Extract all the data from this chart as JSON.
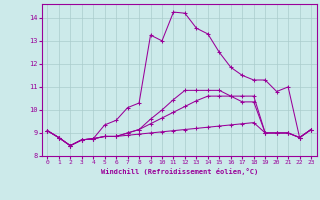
{
  "xlabel": "Windchill (Refroidissement éolien,°C)",
  "bg_color": "#cceaea",
  "grid_color": "#aacccc",
  "line_color": "#990099",
  "xlim": [
    -0.5,
    23.5
  ],
  "ylim": [
    8.0,
    14.6
  ],
  "xticks": [
    0,
    1,
    2,
    3,
    4,
    5,
    6,
    7,
    8,
    9,
    10,
    11,
    12,
    13,
    14,
    15,
    16,
    17,
    18,
    19,
    20,
    21,
    22,
    23
  ],
  "yticks": [
    8,
    9,
    10,
    11,
    12,
    13,
    14
  ],
  "series": [
    [
      9.1,
      8.8,
      8.45,
      8.7,
      8.75,
      9.35,
      9.55,
      10.1,
      10.3,
      13.25,
      13.0,
      14.25,
      14.2,
      13.55,
      13.3,
      12.5,
      11.85,
      11.5,
      11.3,
      11.3,
      10.8,
      11.0,
      8.8,
      9.15
    ],
    [
      9.1,
      8.8,
      8.45,
      8.7,
      8.75,
      8.85,
      8.85,
      8.9,
      8.95,
      9.0,
      9.05,
      9.1,
      9.15,
      9.2,
      9.25,
      9.3,
      9.35,
      9.4,
      9.45,
      9.0,
      9.0,
      9.0,
      8.8,
      9.15
    ],
    [
      9.1,
      8.8,
      8.45,
      8.7,
      8.75,
      8.85,
      8.85,
      9.0,
      9.15,
      9.4,
      9.65,
      9.9,
      10.15,
      10.4,
      10.6,
      10.6,
      10.6,
      10.6,
      10.6,
      9.0,
      9.0,
      9.0,
      8.8,
      9.15
    ],
    [
      9.1,
      8.8,
      8.45,
      8.7,
      8.75,
      8.85,
      8.85,
      9.0,
      9.15,
      9.6,
      10.0,
      10.45,
      10.85,
      10.85,
      10.85,
      10.85,
      10.6,
      10.35,
      10.35,
      9.0,
      9.0,
      9.0,
      8.8,
      9.15
    ]
  ]
}
